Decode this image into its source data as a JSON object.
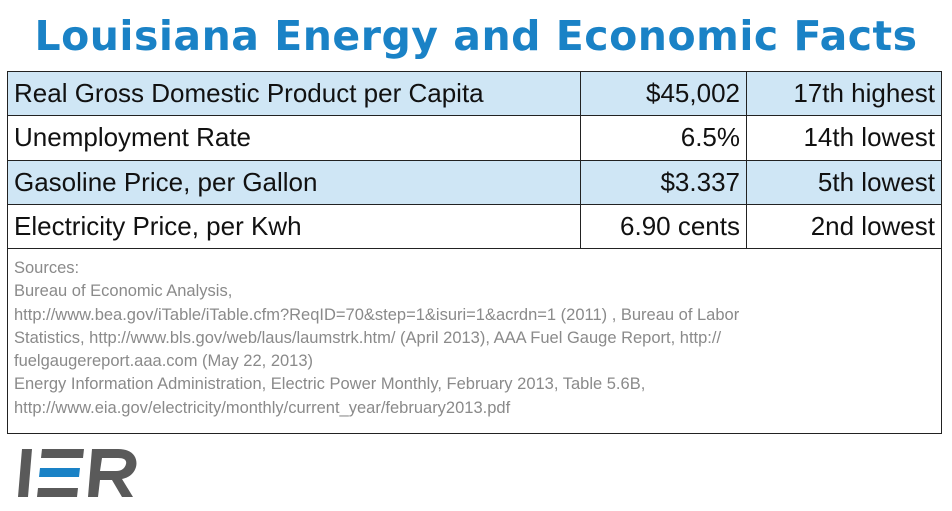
{
  "title": "Louisiana Energy and Economic Facts",
  "chart_data": {
    "type": "table",
    "title": "Louisiana Energy and Economic Facts",
    "rows": [
      {
        "label": "Real Gross Domestic Product per Capita",
        "value": "$45,002",
        "rank": "17th highest"
      },
      {
        "label": "Unemployment Rate",
        "value": "6.5%",
        "rank": "14th lowest"
      },
      {
        "label": "Gasoline Price, per Gallon",
        "value": "$3.337",
        "rank": "5th lowest"
      },
      {
        "label": "Electricity Price, per Kwh",
        "value": "6.90 cents",
        "rank": "2nd lowest"
      }
    ]
  },
  "sources": {
    "heading": "Sources:",
    "lines": [
      "Bureau of Economic Analysis,",
      "http://www.bea.gov/iTable/iTable.cfm?ReqID=70&step=1&isuri=1&acrdn=1 (2011) , Bureau of Labor",
      "Statistics, http://www.bls.gov/web/laus/laumstrk.htm/ (April 2013), AAA Fuel Gauge Report, http://",
      "fuelgaugereport.aaa.com (May 22, 2013)",
      "Energy Information Administration, Electric Power Monthly, February 2013, Table 5.6B,",
      "http://www.eia.gov/electricity/monthly/current_year/february2013.pdf"
    ]
  },
  "logo": {
    "text": "IER",
    "colors": {
      "dark": "#5a5a5a",
      "blue": "#1a82c6"
    }
  },
  "colors": {
    "title": "#1a82c6",
    "row_shade": "#cfe6f5",
    "border": "#222222",
    "source_text": "#8a8a8a"
  }
}
